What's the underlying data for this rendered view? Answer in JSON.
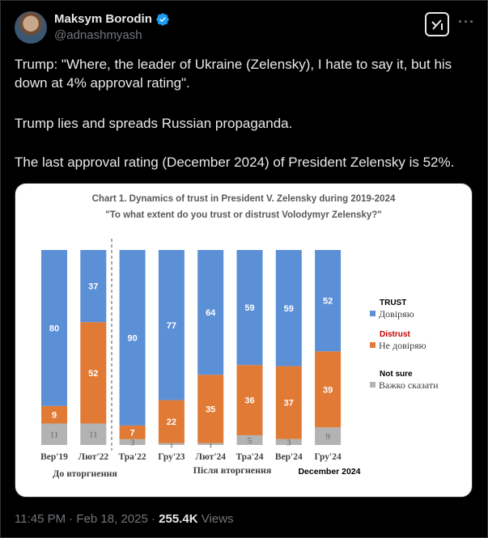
{
  "author": {
    "name": "Maksym Borodin",
    "handle": "@adnashmyash"
  },
  "icons": {
    "verified": "verified-badge-icon",
    "grok": "grok-icon",
    "more": "more-icon"
  },
  "tweet": {
    "line1": "Trump: \"Where, the leader of Ukraine (Zelensky), I hate to say it, but his down at 4% approval rating\".",
    "line2": "Trump lies and spreads Russian propaganda.",
    "line3": "The last approval rating (December 2024) of President Zelensky is 52%."
  },
  "footer": {
    "time": "11:45 PM · Feb 18, 2025 · ",
    "views_count": "255.4K",
    "views_label": " Views"
  },
  "colors": {
    "trust": "#5b8fd6",
    "distrust": "#e07a35",
    "not_sure": "#b3b3b3",
    "accent": "#1d9bf0"
  },
  "chart_data": {
    "type": "bar",
    "stacked": true,
    "title": "Chart 1. Dynamics of trust in President V. Zelensky during 2019-2024",
    "subtitle": "\"To what extent do you trust or distrust Volodymyr Zelensky?\"",
    "categories": [
      "Вер'19",
      "Лют'22",
      "Тра'22",
      "Гру'23",
      "Лют'24",
      "Тра'24",
      "Вер'24",
      "Гру'24"
    ],
    "series": [
      {
        "name": "Не довіряю",
        "values": [
          9,
          52,
          7,
          22,
          35,
          36,
          37,
          39
        ]
      },
      {
        "name": "Довіряю",
        "values": [
          80,
          37,
          90,
          77,
          64,
          59,
          59,
          52
        ]
      },
      {
        "name": "Важко сказати",
        "values": [
          11,
          11,
          3,
          1,
          1,
          5,
          3,
          9
        ]
      }
    ],
    "legend": [
      {
        "heading": "TRUST",
        "label": "Довіряю",
        "color": "#5b8fd6"
      },
      {
        "heading": "Distrust",
        "label": "Не довіряю",
        "color": "#e07a35"
      },
      {
        "heading": "Not sure",
        "label": "Важко сказати",
        "color": "#b3b3b3"
      }
    ],
    "group_labels": [
      "До вторгнення",
      "Після вторгнення"
    ],
    "annotation": "December 2024",
    "ylim": [
      0,
      100
    ]
  }
}
